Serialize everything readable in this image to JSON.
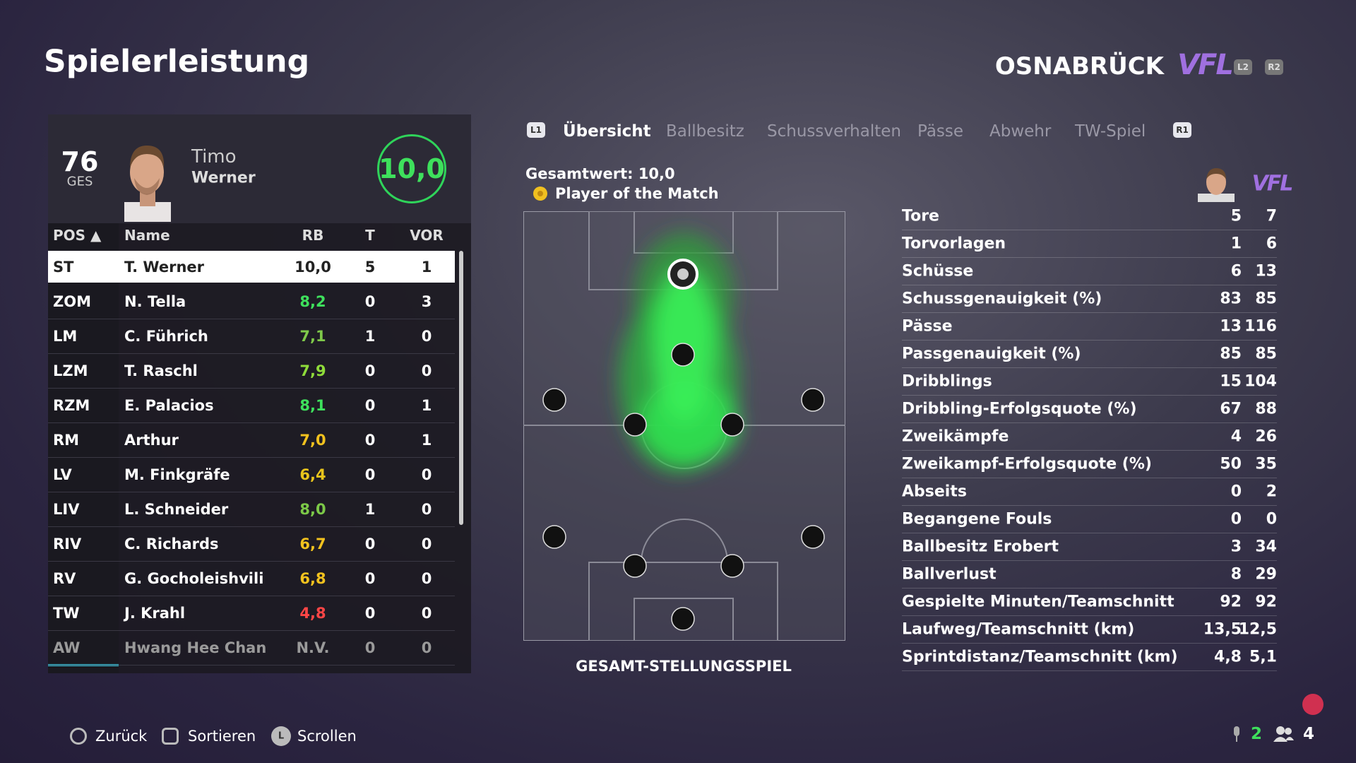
{
  "header": {
    "title": "Spielerleistung",
    "team": "OSNABRÜCK",
    "logo": "VFL",
    "buttons": [
      "L2",
      "R2"
    ]
  },
  "player_card": {
    "rating": "76",
    "rating_label": "GES",
    "first_name": "Timo",
    "last_name": "Werner",
    "score": "10,0"
  },
  "table": {
    "columns": [
      "POS ▲",
      "Name",
      "RB",
      "T",
      "VOR"
    ],
    "rows": [
      [
        "ST",
        "T. Werner",
        "10,0",
        "5",
        "1"
      ],
      [
        "ZOM",
        "N. Tella",
        "8,2",
        "0",
        "3"
      ],
      [
        "LM",
        "C. Führich",
        "7,1",
        "1",
        "0"
      ],
      [
        "LZM",
        "T. Raschl",
        "7,9",
        "0",
        "0"
      ],
      [
        "RZM",
        "E. Palacios",
        "8,1",
        "0",
        "1"
      ],
      [
        "RM",
        "Arthur",
        "7,0",
        "0",
        "1"
      ],
      [
        "LV",
        "M. Finkgräfe",
        "6,4",
        "0",
        "0"
      ],
      [
        "LIV",
        "L. Schneider",
        "8,0",
        "1",
        "0"
      ],
      [
        "RIV",
        "C. Richards",
        "6,7",
        "0",
        "0"
      ],
      [
        "RV",
        "G. Gocholeishvili",
        "6,8",
        "0",
        "0"
      ],
      [
        "TW",
        "J. Krahl",
        "4,8",
        "0",
        "0"
      ],
      [
        "AW",
        "Hwang Hee Chan",
        "N.V.",
        "0",
        "0"
      ]
    ],
    "rb_colors": [
      "#222222",
      "#3ee05c",
      "#7fc94a",
      "#8fdc3a",
      "#3ee05c",
      "#f2c21e",
      "#e8c41c",
      "#7cc948",
      "#f2c21e",
      "#f2c21e",
      "#ff4646",
      "#9a9a9a"
    ]
  },
  "tabs": {
    "left": "L1",
    "items": [
      "Übersicht",
      "Ballbesitz",
      "Schussverhalten",
      "Pässe",
      "Abwehr",
      "TW-Spiel"
    ],
    "right": "R1"
  },
  "pitch": {
    "total": "Gesamtwert: 10,0",
    "award": "Player of the Match",
    "caption": "GESAMT-STELLUNGSSPIEL"
  },
  "stats": {
    "rows": [
      [
        "Tore",
        "5",
        "7"
      ],
      [
        "Torvorlagen",
        "1",
        "6"
      ],
      [
        "Schüsse",
        "6",
        "13"
      ],
      [
        "Schussgenauigkeit (%)",
        "83",
        "85"
      ],
      [
        "Pässe",
        "13",
        "116"
      ],
      [
        "Passgenauigkeit (%)",
        "85",
        "85"
      ],
      [
        "Dribblings",
        "15",
        "104"
      ],
      [
        "Dribbling-Erfolgsquote (%)",
        "67",
        "88"
      ],
      [
        "Zweikämpfe",
        "4",
        "26"
      ],
      [
        "Zweikampf-Erfolgsquote (%)",
        "50",
        "35"
      ],
      [
        "Abseits",
        "0",
        "2"
      ],
      [
        "Begangene Fouls",
        "0",
        "0"
      ],
      [
        "Ballbesitz Erobert",
        "3",
        "34"
      ],
      [
        "Ballverlust",
        "8",
        "29"
      ],
      [
        "Gespielte Minuten/Teamschnitt",
        "92",
        "92"
      ],
      [
        "Laufweg/Teamschnitt (km)",
        "13,5",
        "12,5"
      ],
      [
        "Sprintdistanz/Teamschnitt (km)",
        "4,8",
        "5,1"
      ]
    ]
  },
  "footer": {
    "buttons": [
      "Zurück",
      "Sortieren",
      "Scrollen"
    ],
    "stick": "L",
    "counts": [
      "2",
      "4"
    ]
  }
}
